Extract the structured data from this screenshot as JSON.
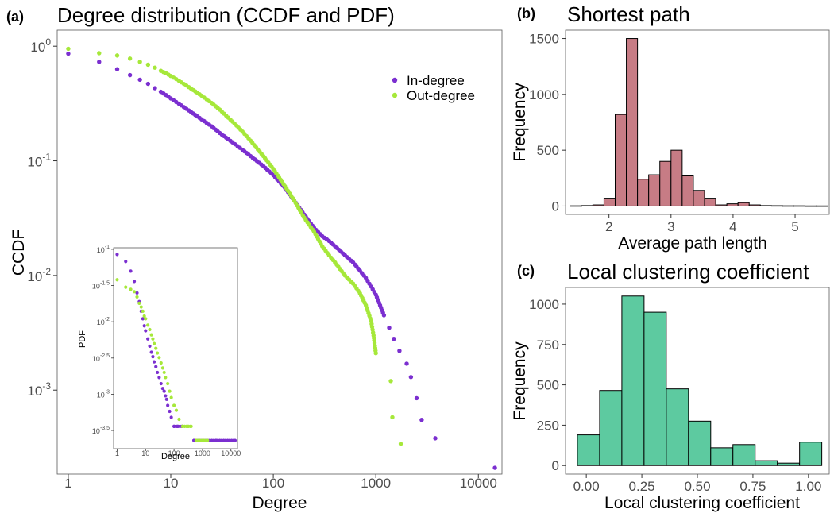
{
  "panel_labels": {
    "a": "(a)",
    "b": "(b)",
    "c": "(c)"
  },
  "colors": {
    "in_degree": "#7b2fd0",
    "out_degree": "#a6e83a",
    "hist_b": "#c77c85",
    "hist_c": "#5dcaa0",
    "bar_edge": "#000000"
  },
  "chart_data": [
    {
      "type": "scatter",
      "title": "Degree distribution (CCDF and PDF)",
      "xlabel": "Degree",
      "ylabel": "CCDF",
      "xscale": "log10",
      "yscale": "log10",
      "xlim": [
        0.78,
        17000
      ],
      "ylim": [
        0.000185,
        1.38
      ],
      "xticks": [
        1,
        10,
        100,
        1000,
        10000
      ],
      "xtick_labels": [
        "1",
        "10",
        "100",
        "1000",
        "10000"
      ],
      "yticks": [
        1,
        0.1,
        0.01,
        0.001
      ],
      "ytick_labels": [
        {
          "base": "10",
          "exp": "0"
        },
        {
          "base": "10",
          "exp": "-1"
        },
        {
          "base": "10",
          "exp": "-2"
        },
        {
          "base": "10",
          "exp": "-3"
        }
      ],
      "legend": {
        "position": "top-right",
        "entries": [
          "In-degree",
          "Out-degree"
        ]
      },
      "grid": false,
      "series": [
        {
          "name": "In-degree",
          "color": "#7b2fd0",
          "points": [
            [
              1,
              0.86
            ],
            [
              2,
              0.73
            ],
            [
              3,
              0.63
            ],
            [
              4,
              0.56
            ],
            [
              5,
              0.51
            ],
            [
              6,
              0.47
            ],
            [
              7,
              0.43
            ],
            [
              8,
              0.4
            ],
            [
              9,
              0.375
            ],
            [
              10,
              0.35
            ],
            [
              12,
              0.315
            ],
            [
              15,
              0.275
            ],
            [
              20,
              0.23
            ],
            [
              25,
              0.2
            ],
            [
              30,
              0.175
            ],
            [
              40,
              0.145
            ],
            [
              50,
              0.125
            ],
            [
              60,
              0.11
            ],
            [
              80,
              0.09
            ],
            [
              100,
              0.075
            ],
            [
              130,
              0.058
            ],
            [
              160,
              0.045
            ],
            [
              200,
              0.034
            ],
            [
              250,
              0.026
            ],
            [
              300,
              0.022
            ],
            [
              350,
              0.02
            ],
            [
              400,
              0.018
            ],
            [
              500,
              0.015
            ],
            [
              600,
              0.013
            ],
            [
              700,
              0.011
            ],
            [
              800,
              0.0095
            ],
            [
              900,
              0.008
            ],
            [
              1000,
              0.0068
            ],
            [
              1100,
              0.0055
            ],
            [
              1200,
              0.0045
            ],
            [
              1350,
              0.0035
            ],
            [
              1500,
              0.0028
            ],
            [
              1700,
              0.0022
            ],
            [
              2000,
              0.0017
            ],
            [
              2200,
              0.0013
            ],
            [
              2500,
              0.00085
            ],
            [
              2800,
              0.00055
            ],
            [
              3800,
              0.00038
            ],
            [
              14500,
              0.00021
            ]
          ]
        },
        {
          "name": "Out-degree",
          "color": "#a6e83a",
          "points": [
            [
              1,
              0.95
            ],
            [
              2,
              0.87
            ],
            [
              3,
              0.83
            ],
            [
              4,
              0.78
            ],
            [
              5,
              0.73
            ],
            [
              6,
              0.69
            ],
            [
              7,
              0.65
            ],
            [
              8,
              0.61
            ],
            [
              9,
              0.58
            ],
            [
              10,
              0.55
            ],
            [
              12,
              0.5
            ],
            [
              15,
              0.44
            ],
            [
              20,
              0.37
            ],
            [
              25,
              0.32
            ],
            [
              30,
              0.28
            ],
            [
              40,
              0.22
            ],
            [
              50,
              0.18
            ],
            [
              60,
              0.15
            ],
            [
              80,
              0.11
            ],
            [
              100,
              0.085
            ],
            [
              130,
              0.06
            ],
            [
              160,
              0.045
            ],
            [
              200,
              0.032
            ],
            [
              250,
              0.024
            ],
            [
              300,
              0.018
            ],
            [
              350,
              0.015
            ],
            [
              400,
              0.013
            ],
            [
              500,
              0.01
            ],
            [
              600,
              0.0085
            ],
            [
              700,
              0.007
            ],
            [
              800,
              0.0055
            ],
            [
              900,
              0.004
            ],
            [
              950,
              0.003
            ],
            [
              1000,
              0.0021
            ],
            [
              1400,
              0.0012
            ],
            [
              1450,
              0.00058
            ],
            [
              1750,
              0.00034
            ]
          ]
        }
      ],
      "inset": {
        "type": "scatter",
        "xlabel": "Degree",
        "ylabel": "PDF",
        "xscale": "log10",
        "yscale": "log10",
        "xlim": [
          0.75,
          17000
        ],
        "ylim": [
          0.000177,
          0.105
        ],
        "xticks": [
          1,
          10,
          100,
          1000,
          10000
        ],
        "xtick_labels": [
          "1",
          "10",
          "100",
          "1000",
          "10000"
        ],
        "yticks": [
          0.1,
          0.0316,
          0.01,
          0.00316,
          0.001,
          0.000316
        ],
        "ytick_labels": [
          {
            "base": "10",
            "exp": "-1"
          },
          {
            "base": "10",
            "exp": "-1.5"
          },
          {
            "base": "10",
            "exp": "-2"
          },
          {
            "base": "10",
            "exp": "-2.5"
          },
          {
            "base": "10",
            "exp": "-3"
          },
          {
            "base": "10",
            "exp": "-3.5"
          }
        ],
        "series": [
          {
            "name": "In-degree",
            "color": "#7b2fd0",
            "points": [
              [
                1,
                0.085
              ],
              [
                2,
                0.068
              ],
              [
                3,
                0.05
              ],
              [
                4,
                0.036
              ],
              [
                5,
                0.025
              ],
              [
                6,
                0.019
              ],
              [
                7,
                0.014
              ],
              [
                8,
                0.011
              ],
              [
                9,
                0.0088
              ],
              [
                10,
                0.0075
              ],
              [
                12,
                0.0058
              ],
              [
                14,
                0.0046
              ],
              [
                16,
                0.0038
              ],
              [
                18,
                0.0033
              ],
              [
                20,
                0.0028
              ],
              [
                23,
                0.0024
              ],
              [
                26,
                0.002
              ],
              [
                30,
                0.0017
              ],
              [
                35,
                0.0014
              ],
              [
                40,
                0.0012
              ],
              [
                45,
                0.0011
              ],
              [
                50,
                0.00095
              ],
              [
                55,
                0.00085
              ],
              [
                60,
                0.0007
              ],
              [
                70,
                0.00058
              ],
              [
                80,
                0.00048
              ],
              [
                100,
                0.00036
              ],
              [
                130,
                0.00036
              ],
              [
                200,
                0.00036
              ],
              [
                500,
                0.00023
              ],
              [
                800,
                0.00023
              ],
              [
                1500,
                0.00023
              ],
              [
                3000,
                0.00023
              ],
              [
                14000,
                0.00023
              ]
            ]
          },
          {
            "name": "Out-degree",
            "color": "#a6e83a",
            "points": [
              [
                1,
                0.038
              ],
              [
                2,
                0.03
              ],
              [
                3,
                0.028
              ],
              [
                4,
                0.026
              ],
              [
                5,
                0.022
              ],
              [
                6,
                0.018
              ],
              [
                7,
                0.016
              ],
              [
                8,
                0.014
              ],
              [
                9,
                0.012
              ],
              [
                10,
                0.011
              ],
              [
                12,
                0.009
              ],
              [
                14,
                0.0078
              ],
              [
                16,
                0.0066
              ],
              [
                18,
                0.0058
              ],
              [
                20,
                0.005
              ],
              [
                23,
                0.0043
              ],
              [
                26,
                0.0037
              ],
              [
                30,
                0.0032
              ],
              [
                35,
                0.0027
              ],
              [
                40,
                0.0023
              ],
              [
                45,
                0.002
              ],
              [
                50,
                0.0017
              ],
              [
                60,
                0.0014
              ],
              [
                70,
                0.0011
              ],
              [
                80,
                0.0009
              ],
              [
                100,
                0.0007
              ],
              [
                120,
                0.0006
              ],
              [
                150,
                0.00045
              ],
              [
                200,
                0.00036
              ],
              [
                300,
                0.00036
              ],
              [
                400,
                0.00036
              ],
              [
                600,
                0.00023
              ],
              [
                1000,
                0.00023
              ],
              [
                1500,
                0.00023
              ]
            ]
          }
        ]
      }
    },
    {
      "type": "bar",
      "title": "Shortest path",
      "xlabel": "Average path length",
      "ylabel": "Frequency",
      "xlim": [
        1.3,
        5.55
      ],
      "ylim": [
        -75,
        1575
      ],
      "xticks": [
        2,
        3,
        4,
        5
      ],
      "xtick_labels": [
        "2",
        "3",
        "4",
        "5"
      ],
      "yticks": [
        0,
        500,
        1000,
        1500
      ],
      "ytick_labels": [
        "0",
        "500",
        "1000",
        "1500"
      ],
      "bin_width": 0.18,
      "bin_left_edges": [
        1.38,
        1.56,
        1.74,
        1.92,
        2.1,
        2.28,
        2.46,
        2.64,
        2.82,
        3.0,
        3.18,
        3.36,
        3.54,
        3.72,
        3.9,
        4.08,
        4.26,
        4.44,
        4.62,
        4.8,
        4.98,
        5.16,
        5.34
      ],
      "values": [
        2,
        4,
        10,
        70,
        820,
        1500,
        240,
        280,
        400,
        500,
        270,
        140,
        70,
        10,
        20,
        30,
        10,
        4,
        3,
        2,
        2,
        1,
        1
      ]
    },
    {
      "type": "bar",
      "title": "Local clustering coefficient",
      "xlabel": "Local clustering coefficient",
      "ylabel": "Frequency",
      "xlim": [
        -0.0935,
        1.0935
      ],
      "ylim": [
        -53,
        1103
      ],
      "xticks": [
        0,
        0.25,
        0.5,
        0.75,
        1.0
      ],
      "xtick_labels": [
        "0.00",
        "0.25",
        "0.50",
        "0.75",
        "1.00"
      ],
      "yticks": [
        0,
        250,
        500,
        750,
        1000
      ],
      "ytick_labels": [
        "0",
        "250",
        "500",
        "750",
        "1000"
      ],
      "bin_width": 0.1,
      "bin_left_edges": [
        -0.04,
        0.06,
        0.16,
        0.26,
        0.36,
        0.46,
        0.56,
        0.66,
        0.76,
        0.86,
        0.96
      ],
      "values": [
        190,
        465,
        1050,
        950,
        475,
        275,
        110,
        130,
        30,
        15,
        145
      ]
    }
  ]
}
